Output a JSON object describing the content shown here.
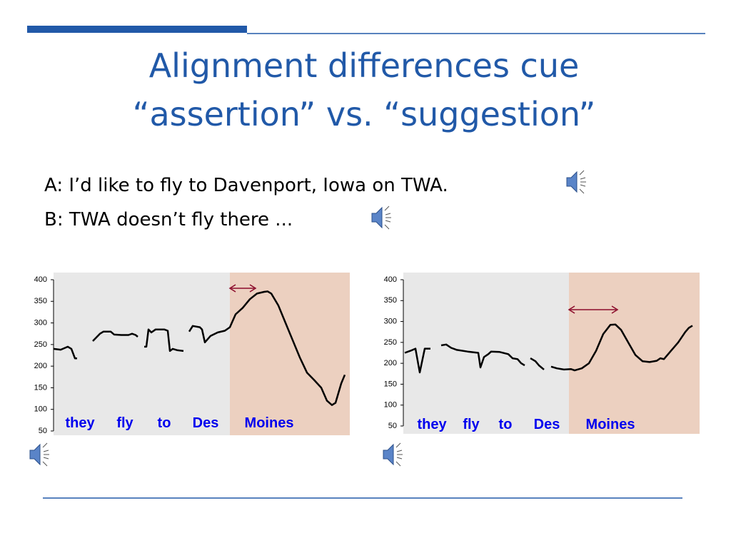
{
  "slide": {
    "title_lines": [
      "Alignment differences cue",
      "“assertion” vs. “suggestion”"
    ],
    "lines": [
      "A: I’d like to fly to Davenport, Iowa on TWA.",
      "B: TWA doesn’t fly there ..."
    ]
  },
  "chart_data": [
    {
      "type": "line",
      "ylim": [
        50,
        400
      ],
      "yticks": [
        50,
        100,
        150,
        200,
        250,
        300,
        350,
        400
      ],
      "xlim": [
        0,
        415
      ],
      "annotations": [
        "they",
        "fly",
        "to",
        "Des",
        "Moines"
      ],
      "series": [
        {
          "color": "#000000",
          "x": [
            0,
            10,
            20,
            25,
            30,
            33,
            44,
            55,
            65,
            70,
            80,
            85,
            95,
            105,
            110,
            115,
            118,
            122,
            127,
            130,
            133,
            137,
            143,
            155,
            160,
            163,
            167,
            173,
            182,
            186,
            190,
            195,
            205,
            208,
            212,
            220,
            230,
            240,
            247,
            255,
            265,
            275,
            285,
            295,
            300,
            305,
            315,
            325,
            335,
            345,
            355,
            365,
            375,
            383,
            390,
            395,
            403,
            408
          ],
          "values": [
            240,
            238,
            245,
            240,
            218,
            218,
            null,
            258,
            275,
            280,
            280,
            273,
            272,
            272,
            275,
            272,
            268,
            null,
            245,
            245,
            285,
            278,
            285,
            285,
            282,
            235,
            240,
            237,
            235,
            null,
            280,
            293,
            290,
            285,
            255,
            270,
            278,
            282,
            290,
            320,
            335,
            355,
            368,
            372,
            373,
            368,
            340,
            300,
            260,
            220,
            185,
            168,
            150,
            120,
            110,
            115,
            160,
            180
          ]
        }
      ]
    },
    {
      "type": "line",
      "ylim": [
        50,
        400
      ],
      "yticks": [
        50,
        100,
        150,
        200,
        250,
        300,
        350,
        400
      ],
      "xlim": [
        0,
        415
      ],
      "annotations": [
        "they",
        "fly",
        "to",
        "Des",
        "Moines"
      ],
      "series": [
        {
          "color": "#000000",
          "x": [
            2,
            10,
            17,
            23,
            30,
            38,
            45,
            53,
            60,
            67,
            75,
            90,
            105,
            108,
            113,
            119,
            123,
            135,
            147,
            153,
            160,
            165,
            170,
            174,
            178,
            185,
            190,
            197,
            202,
            207,
            215,
            225,
            235,
            240,
            250,
            260,
            270,
            280,
            290,
            297,
            305,
            315,
            325,
            335,
            345,
            355,
            360,
            365,
            375,
            385,
            395,
            400,
            405
          ],
          "values": [
            225,
            230,
            235,
            178,
            235,
            235,
            null,
            243,
            245,
            237,
            232,
            228,
            225,
            190,
            215,
            222,
            228,
            227,
            222,
            212,
            210,
            200,
            195,
            null,
            212,
            205,
            195,
            185,
            null,
            192,
            188,
            185,
            186,
            183,
            188,
            200,
            230,
            270,
            292,
            293,
            280,
            250,
            220,
            205,
            203,
            206,
            212,
            210,
            230,
            250,
            275,
            285,
            290
          ]
        }
      ]
    }
  ]
}
